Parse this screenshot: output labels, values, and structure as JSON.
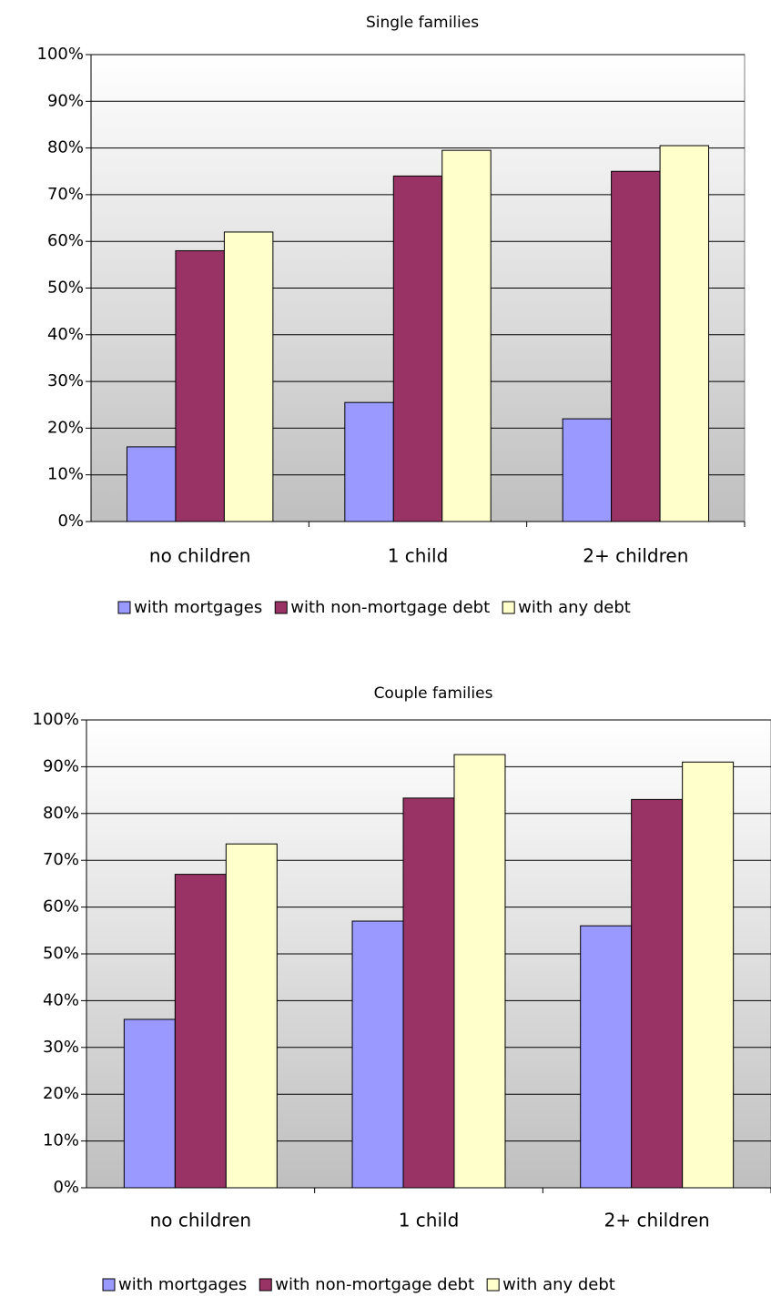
{
  "chart_data": [
    {
      "type": "bar",
      "title": "Single families",
      "categories": [
        "no children",
        "1 child",
        "2+ children"
      ],
      "series": [
        {
          "name": "with mortgages",
          "color": "#9999ff",
          "values": [
            16,
            25.5,
            22
          ]
        },
        {
          "name": "with non-mortgage debt",
          "color": "#993366",
          "values": [
            58,
            74,
            75
          ]
        },
        {
          "name": "with any debt",
          "color": "#ffffcc",
          "values": [
            62,
            79.5,
            80.5
          ]
        }
      ],
      "ylim": [
        0,
        100
      ],
      "yticks": [
        {
          "value": 0,
          "label": "0%"
        },
        {
          "value": 10,
          "label": "10%"
        },
        {
          "value": 20,
          "label": "20%"
        },
        {
          "value": 30,
          "label": "30%"
        },
        {
          "value": 40,
          "label": "40%"
        },
        {
          "value": 50,
          "label": "50%"
        },
        {
          "value": 60,
          "label": "60%"
        },
        {
          "value": 70,
          "label": "70%"
        },
        {
          "value": 80,
          "label": "80%"
        },
        {
          "value": 90,
          "label": "90%"
        },
        {
          "value": 100,
          "label": "100%"
        }
      ],
      "grid": true,
      "legend": "bottom"
    },
    {
      "type": "bar",
      "title": "Couple families",
      "categories": [
        "no children",
        "1 child",
        "2+ children"
      ],
      "series": [
        {
          "name": "with mortgages",
          "color": "#9999ff",
          "values": [
            36,
            57,
            56
          ]
        },
        {
          "name": "with non-mortgage debt",
          "color": "#993366",
          "values": [
            67,
            83.3,
            83
          ]
        },
        {
          "name": "with any debt",
          "color": "#ffffcc",
          "values": [
            73.5,
            92.6,
            91
          ]
        }
      ],
      "ylim": [
        0,
        100
      ],
      "yticks": [
        {
          "value": 0,
          "label": "0%"
        },
        {
          "value": 10,
          "label": "10%"
        },
        {
          "value": 20,
          "label": "20%"
        },
        {
          "value": 30,
          "label": "30%"
        },
        {
          "value": 40,
          "label": "40%"
        },
        {
          "value": 50,
          "label": "50%"
        },
        {
          "value": 60,
          "label": "60%"
        },
        {
          "value": 70,
          "label": "70%"
        },
        {
          "value": 80,
          "label": "80%"
        },
        {
          "value": 90,
          "label": "90%"
        },
        {
          "value": 100,
          "label": "100%"
        }
      ],
      "grid": true,
      "legend": "bottom"
    }
  ]
}
